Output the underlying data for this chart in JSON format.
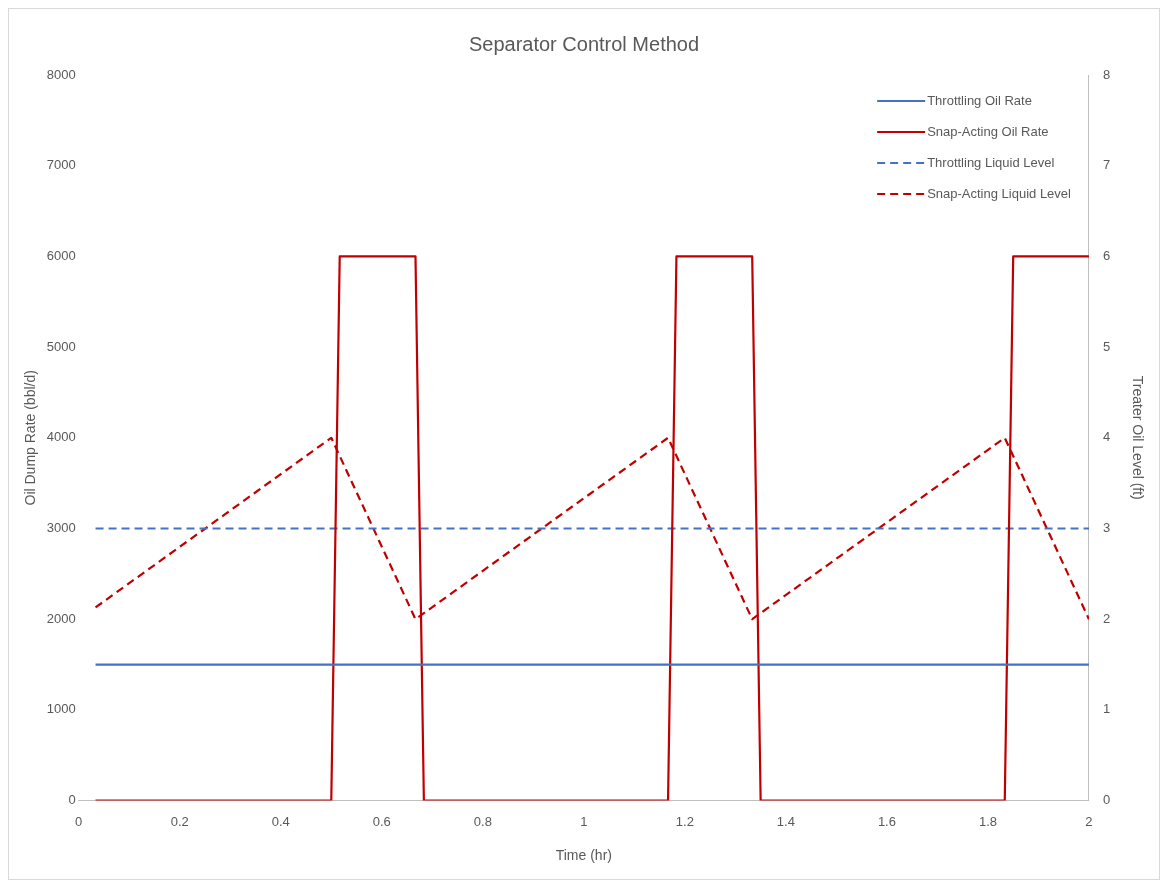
{
  "chart_data": {
    "type": "line",
    "title": "Separator Control Method",
    "xlabel": "Time (hr)",
    "ylabel": "Oil Dump Rate (bbl/d)",
    "y2label": "Treater Oil Level (ft)",
    "xlim": [
      0,
      2
    ],
    "xticks": [
      0,
      0.2,
      0.4,
      0.6,
      0.8,
      1,
      1.2,
      1.4,
      1.6,
      1.8,
      2
    ],
    "ylim": [
      0,
      8000
    ],
    "yticks": [
      0,
      1000,
      2000,
      3000,
      4000,
      5000,
      6000,
      7000,
      8000
    ],
    "y2lim": [
      0,
      8
    ],
    "y2ticks": [
      0,
      1,
      2,
      3,
      4,
      5,
      6,
      7,
      8
    ],
    "grid": false,
    "legend": "top right",
    "marker": "none",
    "series": [
      {
        "name": "Throttling Oil Rate",
        "color": "#4472c4",
        "line_style": "solid",
        "x": [
          0.0333,
          2
        ],
        "values": [
          1500,
          1500
        ]
      },
      {
        "name": "Snap-Acting Oil Rate",
        "color": "#c00000",
        "line_style": "solid",
        "x": [
          0.0333,
          0.5,
          0.5167,
          0.6667,
          0.6833,
          1.1667,
          1.1833,
          1.3333,
          1.35,
          1.8333,
          1.85,
          2
        ],
        "values": [
          0,
          0,
          6000,
          6000,
          0,
          0,
          6000,
          6000,
          0,
          0,
          6000,
          6000
        ]
      },
      {
        "name": "Throttling Liquid Level",
        "color": "#4472c4",
        "line_style": "dashed",
        "axis": "y2",
        "x": [
          0.0333,
          2
        ],
        "values": [
          3,
          3
        ]
      },
      {
        "name": "Snap-Acting Liquid Level",
        "color": "#c00000",
        "line_style": "dashed",
        "axis": "y2",
        "x": [
          0.0333,
          0.5,
          0.6667,
          1.1667,
          1.3333,
          1.8333,
          2
        ],
        "values": [
          2.13,
          4,
          2,
          4,
          2,
          4,
          2
        ]
      }
    ]
  }
}
